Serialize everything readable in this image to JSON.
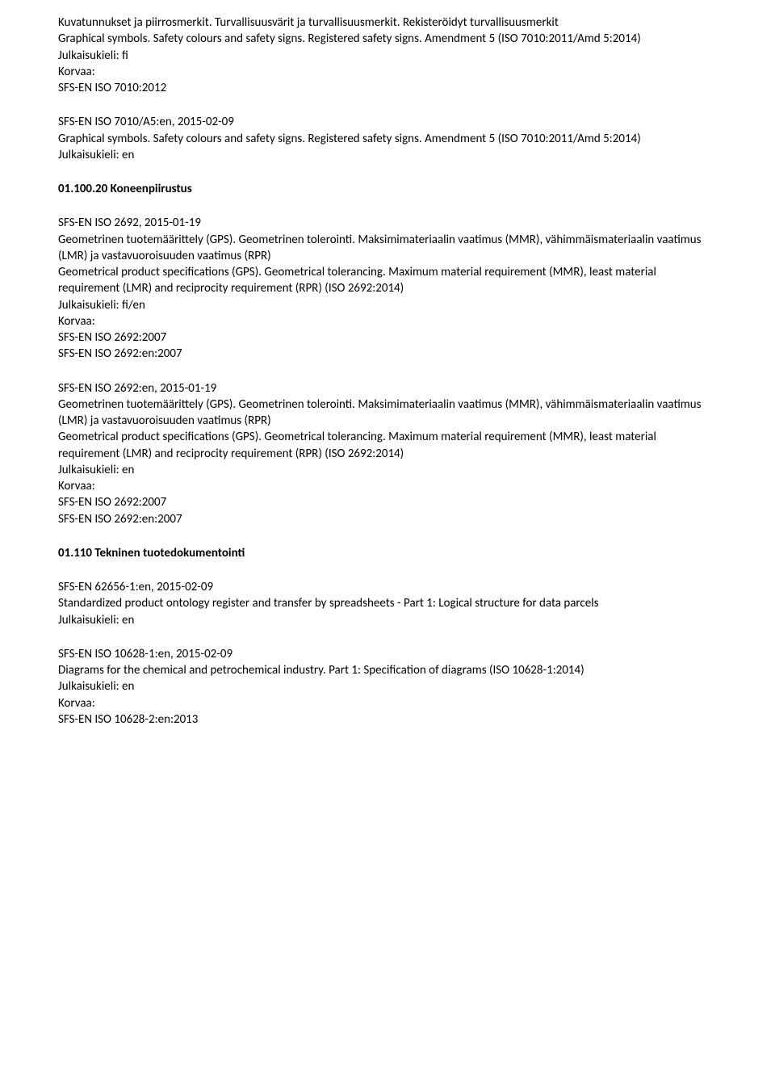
{
  "blocks": [
    {
      "lines": [
        "Kuvatunnukset ja piirrosmerkit. Turvallisuusvärit ja turvallisuusmerkit. Rekisteröidyt turvallisuusmerkit",
        "Graphical symbols. Safety colours and safety signs. Registered safety signs. Amendment 5 (ISO 7010:2011/Amd 5:2014)",
        "Julkaisukieli: fi",
        "Korvaa:",
        "SFS-EN ISO 7010:2012"
      ]
    },
    {
      "lines": [
        "SFS-EN ISO 7010/A5:en, 2015-02-09",
        "Graphical symbols. Safety colours and safety signs. Registered safety signs. Amendment 5 (ISO 7010:2011/Amd 5:2014)",
        "Julkaisukieli: en"
      ]
    },
    {
      "heading": "01.100.20 Koneenpiirustus"
    },
    {
      "lines": [
        "SFS-EN ISO 2692, 2015-01-19",
        "Geometrinen tuotemäärittely (GPS). Geometrinen tolerointi. Maksimimateriaalin vaatimus (MMR), vähimmäismateriaalin vaatimus (LMR) ja vastavuoroisuuden vaatimus (RPR)",
        "Geometrical product specifications (GPS). Geometrical tolerancing. Maximum material requirement (MMR), least material requirement (LMR) and reciprocity requirement (RPR) (ISO 2692:2014)",
        "Julkaisukieli: fi/en",
        "Korvaa:",
        "SFS-EN ISO 2692:2007",
        "SFS-EN ISO 2692:en:2007"
      ]
    },
    {
      "lines": [
        "SFS-EN ISO 2692:en, 2015-01-19",
        "Geometrinen tuotemäärittely (GPS). Geometrinen tolerointi. Maksimimateriaalin vaatimus (MMR), vähimmäismateriaalin vaatimus (LMR) ja vastavuoroisuuden vaatimus (RPR)",
        "Geometrical product specifications (GPS). Geometrical tolerancing. Maximum material requirement (MMR), least material requirement (LMR) and reciprocity requirement (RPR) (ISO 2692:2014)",
        "Julkaisukieli: en",
        "Korvaa:",
        "SFS-EN ISO 2692:2007",
        "SFS-EN ISO 2692:en:2007"
      ]
    },
    {
      "heading": "01.110 Tekninen tuotedokumentointi"
    },
    {
      "lines": [
        "SFS-EN 62656-1:en, 2015-02-09",
        "Standardized product ontology register and transfer by spreadsheets - Part 1: Logical structure for data parcels",
        "Julkaisukieli: en"
      ]
    },
    {
      "lines": [
        "SFS-EN ISO 10628-1:en, 2015-02-09",
        "Diagrams for the chemical and petrochemical industry. Part 1: Specification of diagrams (ISO 10628-1:2014)",
        "Julkaisukieli: en",
        "Korvaa:",
        "SFS-EN ISO 10628-2:en:2013"
      ]
    }
  ]
}
